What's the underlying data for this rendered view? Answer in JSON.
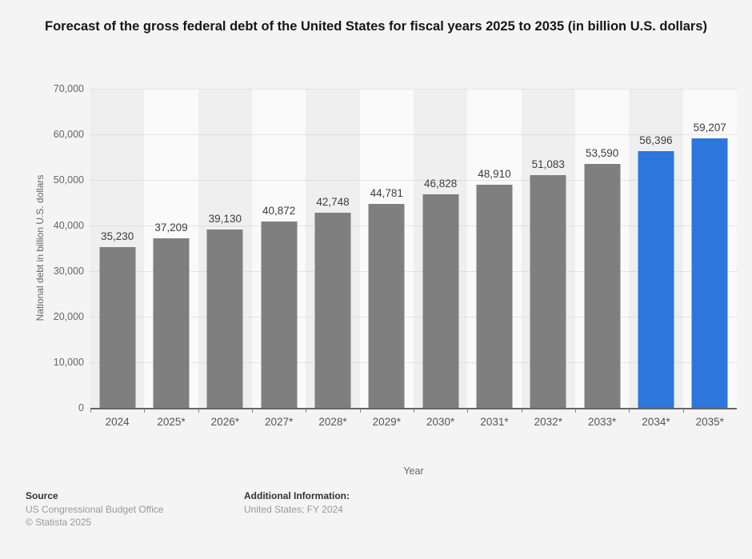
{
  "title": "Forecast of the gross federal debt of the United States for fiscal years 2025 to 2035 (in billion U.S. dollars)",
  "chart_data": {
    "type": "bar",
    "title": "Forecast of the gross federal debt of the United States for fiscal years 2025 to 2035 (in billion U.S. dollars)",
    "categories": [
      "2024",
      "2025*",
      "2026*",
      "2027*",
      "2028*",
      "2029*",
      "2030*",
      "2031*",
      "2032*",
      "2033*",
      "2034*",
      "2035*"
    ],
    "values": [
      35230,
      37209,
      39130,
      40872,
      42748,
      44781,
      46828,
      48910,
      51083,
      53590,
      56396,
      59207
    ],
    "value_labels": [
      "35,230",
      "37,209",
      "39,130",
      "40,872",
      "42,748",
      "44,781",
      "46,828",
      "48,910",
      "51,083",
      "53,590",
      "56,396",
      "59,207"
    ],
    "xlabel": "Year",
    "ylabel": "National debt in billion U.S. dollars",
    "ylim": [
      0,
      70000
    ],
    "ytick_labels_top_down": [
      "70,000",
      "60,000",
      "50,000",
      "40,000",
      "30,000",
      "20,000",
      "10,000",
      "0"
    ],
    "grid": "horizontal-dotted",
    "legend": "none",
    "colors": {
      "bar_default": "#7f7f7f",
      "bar_highlight": "#2c76dc",
      "highlight_indices": [
        10,
        11
      ],
      "band_even": "#efefef",
      "band_odd": "#fafafa",
      "background": "#f4f4f4"
    }
  },
  "footer": {
    "source_heading": "Source",
    "source_lines": [
      "US Congressional Budget Office",
      "© Statista 2025"
    ],
    "additional_heading": "Additional Information:",
    "additional_lines": [
      "United States; FY 2024"
    ]
  }
}
